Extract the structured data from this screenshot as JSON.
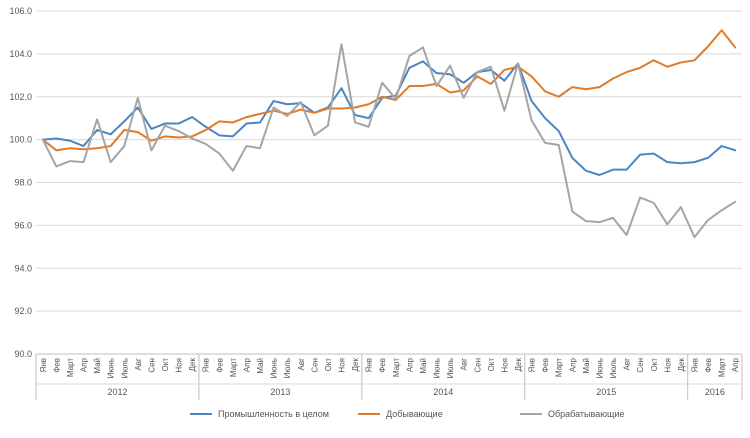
{
  "chart_data": {
    "type": "line",
    "ylim": [
      90,
      106
    ],
    "yticks": [
      "90.0",
      "92.0",
      "94.0",
      "96.0",
      "98.0",
      "100.0",
      "102.0",
      "104.0",
      "106.0"
    ],
    "grid": "horizontal",
    "legend": "bottom",
    "month_labels": [
      "Янв",
      "Фев",
      "Март",
      "Апр",
      "Май",
      "Июнь",
      "Июль",
      "Авг",
      "Сен",
      "Окт",
      "Ноя",
      "Дек",
      "Янв",
      "Фев",
      "Март",
      "Апр",
      "Май",
      "Июнь",
      "Июль",
      "Авг",
      "Сен",
      "Окт",
      "Ноя",
      "Дек",
      "Янв",
      "Фев",
      "Март",
      "Апр",
      "Май",
      "Июнь",
      "Июль",
      "Авг",
      "Сен",
      "Окт",
      "Ноя",
      "Дек",
      "Янв",
      "Фев",
      "Март",
      "Апр",
      "Май",
      "Июнь",
      "Июль",
      "Авг",
      "Сен",
      "Окт",
      "Ноя",
      "Дек",
      "Янв",
      "Фев",
      "Март",
      "Апр"
    ],
    "year_groups": [
      {
        "label": "2012",
        "months": 12
      },
      {
        "label": "2013",
        "months": 12
      },
      {
        "label": "2014",
        "months": 12
      },
      {
        "label": "2015",
        "months": 12
      },
      {
        "label": "2016",
        "months": 4
      }
    ],
    "series": [
      {
        "name": "Промышленность в целом",
        "color": "#4a86c5",
        "values": [
          100.0,
          100.05,
          99.95,
          99.7,
          100.45,
          100.25,
          100.85,
          101.5,
          100.5,
          100.75,
          100.75,
          101.05,
          100.6,
          100.2,
          100.15,
          100.75,
          100.8,
          101.8,
          101.65,
          101.7,
          101.25,
          101.5,
          102.4,
          101.15,
          101.0,
          101.95,
          102.05,
          103.35,
          103.65,
          103.1,
          103.05,
          102.65,
          103.15,
          103.25,
          102.75,
          103.55,
          101.8,
          101.0,
          100.4,
          99.15,
          98.55,
          98.35,
          98.6,
          98.6,
          99.3,
          99.35,
          98.95,
          98.9,
          98.95,
          99.15,
          99.7,
          99.5
        ]
      },
      {
        "name": "Добывающие",
        "color": "#e07b2a",
        "values": [
          100.0,
          99.5,
          99.6,
          99.55,
          99.6,
          99.7,
          100.45,
          100.35,
          99.95,
          100.15,
          100.1,
          100.15,
          100.45,
          100.85,
          100.8,
          101.05,
          101.2,
          101.35,
          101.2,
          101.4,
          101.25,
          101.45,
          101.45,
          101.5,
          101.65,
          102.0,
          101.85,
          102.5,
          102.5,
          102.6,
          102.2,
          102.3,
          102.95,
          102.6,
          103.25,
          103.4,
          102.95,
          102.25,
          102.0,
          102.45,
          102.35,
          102.45,
          102.85,
          103.15,
          103.35,
          103.7,
          103.4,
          103.6,
          103.7,
          104.35,
          105.1,
          104.3
        ]
      },
      {
        "name": "Обрабатывающие",
        "color": "#a5a5a5",
        "values": [
          100.0,
          98.75,
          99.0,
          98.95,
          100.95,
          98.95,
          99.7,
          101.95,
          99.5,
          100.65,
          100.4,
          100.05,
          99.8,
          99.35,
          98.55,
          99.7,
          99.6,
          101.5,
          101.1,
          101.75,
          100.2,
          100.65,
          104.45,
          100.8,
          100.6,
          102.65,
          101.9,
          103.9,
          104.3,
          102.5,
          103.45,
          101.95,
          103.15,
          103.4,
          101.35,
          103.55,
          100.9,
          99.85,
          99.75,
          96.65,
          96.2,
          96.15,
          96.35,
          95.55,
          97.3,
          97.05,
          96.05,
          96.85,
          95.45,
          96.25,
          96.7,
          97.1
        ]
      }
    ]
  }
}
